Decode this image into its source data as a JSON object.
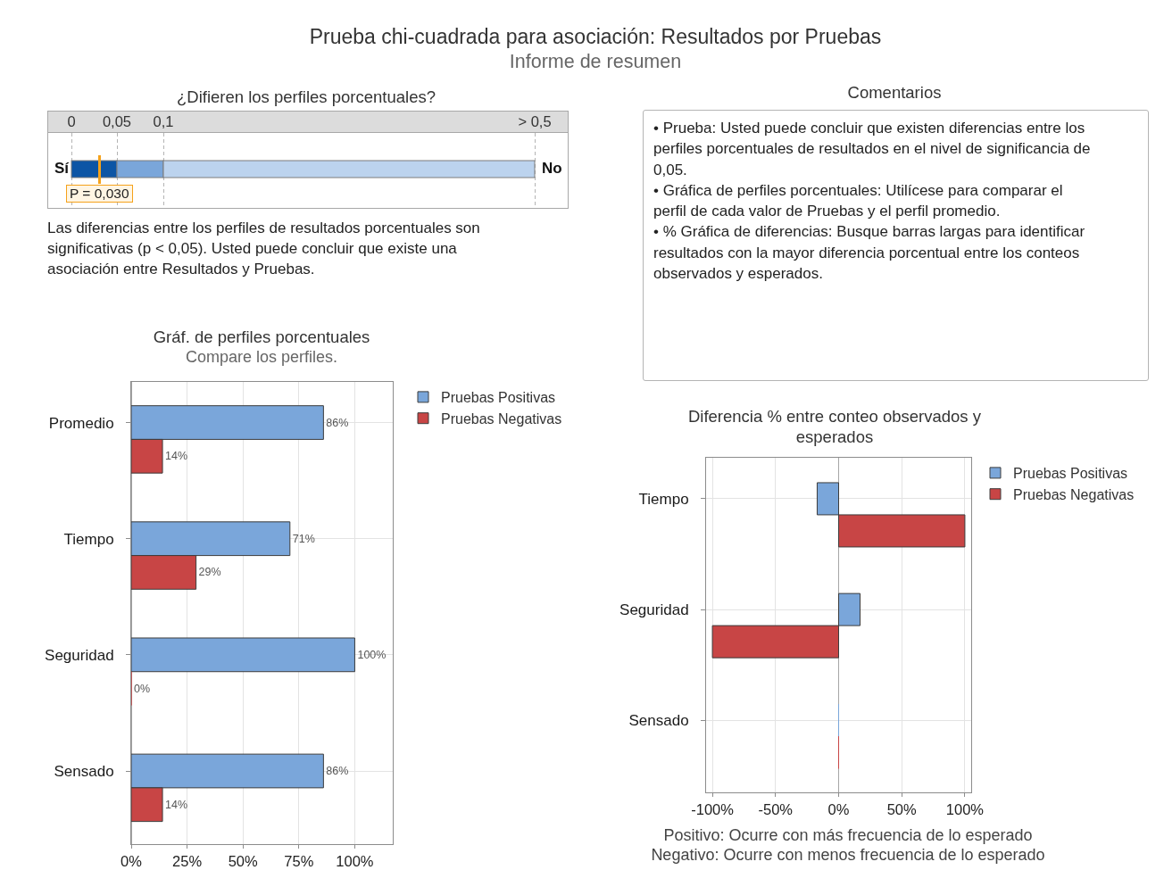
{
  "chart_data": [
    {
      "type": "other",
      "title": "Prueba chi-cuadrada para asociación: Resultados por Pruebas",
      "subtitle": "Informe de resumen"
    },
    {
      "type": "other",
      "title": "¿Difieren los perfiles porcentuales?",
      "annotations": [
        "0",
        "0,05",
        "0,1",
        "> 0,5",
        "Sí",
        "No",
        "P = 0,030",
        "Las diferencias entre los perfiles de resultados porcentuales son significativas (p < 0,05). Usted puede concluir que existe una asociación entre Resultados y Pruebas."
      ]
    },
    {
      "type": "other",
      "title": "Comentarios",
      "annotations": [
        "• Prueba: Usted puede concluir que existen diferencias entre los perfiles porcentuales de resultados en el nivel de significancia de 0,05.",
        "• Gráfica de perfiles porcentuales: Utilícese para comparar el perfil de cada valor de Pruebas y el perfil promedio.",
        "• % Gráfica de diferencias: Busque barras largas para identificar resultados con la mayor diferencia porcentual entre los conteos observados y esperados."
      ]
    },
    {
      "type": "bar",
      "orientation": "horizontal",
      "title": "Gráf. de perfiles porcentuales",
      "subtitle": "Compare los perfiles.",
      "categories": [
        "Promedio",
        "Tiempo",
        "Seguridad",
        "Sensado"
      ],
      "series": [
        {
          "name": "Pruebas Positivas",
          "color": "#7aa6da",
          "values": [
            86,
            71,
            100,
            86
          ],
          "value_labels": [
            "86%",
            "71%",
            "100%",
            "86%"
          ]
        },
        {
          "name": "Pruebas Negativas",
          "color": "#c84545",
          "values": [
            14,
            29,
            0,
            14
          ],
          "value_labels": [
            "14%",
            "29%",
            "0%",
            "14%"
          ]
        }
      ],
      "xlim": [
        0,
        117
      ],
      "xticks": [
        {
          "value": 0,
          "label": "0%"
        },
        {
          "value": 25,
          "label": "25%"
        },
        {
          "value": 50,
          "label": "50%"
        },
        {
          "value": 75,
          "label": "75%"
        },
        {
          "value": 100,
          "label": "100%"
        }
      ],
      "grid": true,
      "legend": "top right"
    },
    {
      "type": "bar",
      "orientation": "horizontal",
      "title": "Diferencia % entre conteo observados y esperados",
      "categories": [
        "Tiempo",
        "Seguridad",
        "Sensado"
      ],
      "series": [
        {
          "name": "Pruebas Positivas",
          "color": "#7aa6da",
          "values": [
            -17,
            17,
            0
          ]
        },
        {
          "name": "Pruebas Negativas",
          "color": "#c84545",
          "values": [
            100,
            -100,
            0
          ]
        }
      ],
      "xlim": [
        -105,
        105
      ],
      "xticks": [
        {
          "value": -100,
          "label": "-100%"
        },
        {
          "value": -50,
          "label": "-50%"
        },
        {
          "value": 0,
          "label": "0%"
        },
        {
          "value": 50,
          "label": "50%"
        },
        {
          "value": 100,
          "label": "100%"
        }
      ],
      "grid": true,
      "legend": "top right",
      "annotations": [
        "Positivo: Ocurre con más frecuencia de lo esperado",
        "Negativo: Ocurre con menos frecuencia de lo esperado"
      ]
    }
  ]
}
